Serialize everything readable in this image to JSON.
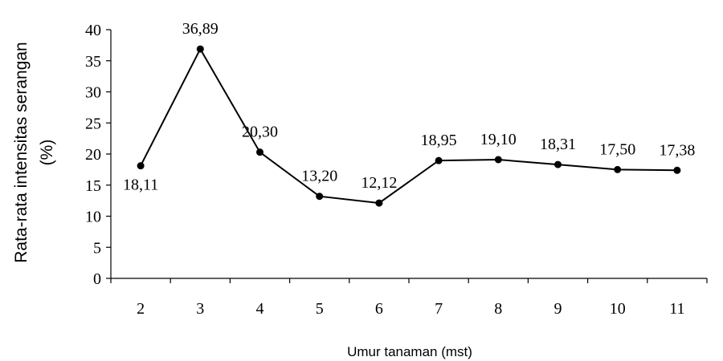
{
  "chart_data": {
    "type": "line",
    "categories": [
      "2",
      "3",
      "4",
      "5",
      "6",
      "7",
      "8",
      "9",
      "10",
      "11"
    ],
    "series": [
      {
        "values": [
          18.11,
          36.89,
          20.3,
          13.2,
          12.12,
          18.95,
          19.1,
          18.31,
          17.5,
          17.38
        ],
        "labels": [
          "18,11",
          "36,89",
          "20,30",
          "13,20",
          "12,12",
          "18,95",
          "19,10",
          "18,31",
          "17,50",
          "17,38"
        ]
      }
    ],
    "xlabel": "Umur tanaman (mst)",
    "ylabel_line1": "Rata-rata intensitas serangan",
    "ylabel_line2": "(%)",
    "ylim": [
      0,
      40
    ],
    "yticks": [
      "0",
      "5",
      "10",
      "15",
      "20",
      "25",
      "30",
      "35",
      "40"
    ],
    "grid": false,
    "legend": "none"
  }
}
